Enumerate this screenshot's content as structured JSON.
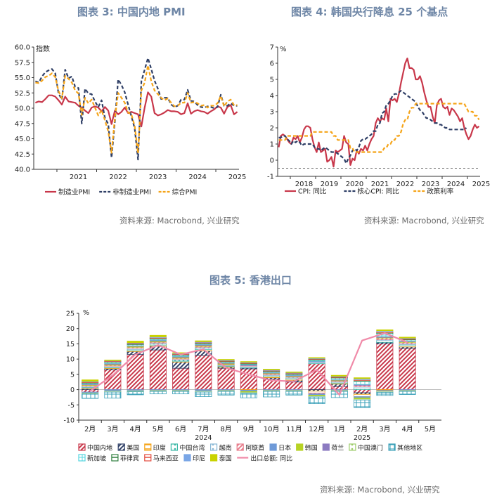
{
  "chart_data": [
    {
      "type": "line",
      "title": "图表 3:  中国内地 PMI",
      "ylabel": "指数",
      "ylim": [
        40,
        60
      ],
      "yticks": [
        "40.0",
        "42.5",
        "45.0",
        "47.5",
        "50.0",
        "52.5",
        "55.0",
        "57.5",
        "60.0"
      ],
      "xticks": [
        "2021",
        "2022",
        "2023",
        "2024",
        "2025"
      ],
      "x_start": "2020-06",
      "series": [
        {
          "name": "制造业PMI",
          "color": "#c8374a",
          "dash": "solid",
          "values": [
            50.9,
            51.1,
            51.0,
            51.5,
            52.1,
            52.1,
            51.9,
            51.3,
            50.6,
            51.9,
            51.1,
            51.0,
            50.9,
            50.4,
            50.1,
            49.6,
            49.2,
            50.1,
            50.3,
            50.1,
            49.5,
            50.2,
            49.6,
            47.4,
            49.6,
            49.0,
            49.4,
            50.1,
            49.2,
            49.4,
            49.2,
            49.0,
            47.0,
            50.1,
            52.6,
            51.9,
            49.2,
            48.8,
            49.0,
            49.3,
            49.7,
            49.5,
            49.5,
            49.4,
            49.0,
            49.2,
            50.8,
            49.1,
            49.5,
            49.7,
            49.5,
            49.4,
            49.1,
            49.5,
            49.8,
            50.3,
            50.1,
            49.1,
            50.2,
            50.5,
            49.0,
            49.4
          ]
        },
        {
          "name": "非制造业PMI",
          "color": "#2f3f66",
          "dash": "dash",
          "values": [
            54.4,
            54.2,
            55.2,
            55.9,
            56.2,
            56.4,
            55.7,
            52.4,
            51.4,
            56.3,
            54.9,
            55.2,
            53.5,
            53.3,
            47.5,
            53.2,
            52.4,
            52.3,
            51.1,
            50.2,
            51.3,
            48.4,
            47.4,
            41.9,
            47.8,
            54.7,
            53.8,
            52.6,
            50.6,
            48.7,
            46.7,
            41.6,
            54.4,
            56.3,
            58.2,
            56.4,
            54.5,
            53.2,
            51.5,
            51.7,
            51.7,
            50.6,
            50.2,
            50.4,
            51.4,
            51.4,
            53.0,
            51.2,
            51.1,
            50.5,
            50.2,
            50.1,
            50.3,
            50.2,
            50.0,
            50.2,
            52.2,
            50.4,
            50.4,
            50.8,
            50.4,
            50.4
          ]
        },
        {
          "name": "综合PMI",
          "color": "#f5a418",
          "dash": "dash",
          "values": [
            54.2,
            54.1,
            54.5,
            55.1,
            55.3,
            55.7,
            55.1,
            52.8,
            51.6,
            55.3,
            54.8,
            54.2,
            52.9,
            52.4,
            48.9,
            51.7,
            50.8,
            51.4,
            50.1,
            48.8,
            49.7,
            48.0,
            46.2,
            42.7,
            48.4,
            52.5,
            51.7,
            50.9,
            49.3,
            49.0,
            47.1,
            42.6,
            52.9,
            54.2,
            57.0,
            54.4,
            52.9,
            52.3,
            51.7,
            51.3,
            51.6,
            50.9,
            50.3,
            50.4,
            50.9,
            50.9,
            52.5,
            50.9,
            51.0,
            50.8,
            50.4,
            50.5,
            50.1,
            50.4,
            50.4,
            50.8,
            52.0,
            50.3,
            51.1,
            51.4,
            50.5,
            50.5
          ]
        }
      ],
      "legend": [
        "制造业PMI",
        "非制造业PMI",
        "综合PMI"
      ],
      "legend_position": "bottom"
    },
    {
      "type": "line",
      "title": "图表 4:  韩国央行降息 25 个基点",
      "ylabel": "%",
      "ylim": [
        -1,
        7
      ],
      "yticks": [
        "-1",
        "0",
        "1",
        "2",
        "3",
        "4",
        "5",
        "6",
        "7"
      ],
      "xticks": [
        "2018",
        "2019",
        "2020",
        "2021",
        "2022",
        "2023",
        "2024",
        "2025"
      ],
      "x_start": "2017-07",
      "reference_line": -0.5,
      "series": [
        {
          "name": "CPI: 同比",
          "color": "#c8374a",
          "dash": "solid",
          "values": [
            0.8,
            1.5,
            1.6,
            1.5,
            1.3,
            1.1,
            1.0,
            1.4,
            1.3,
            1.5,
            1.1,
            1.4,
            1.9,
            2.1,
            2.1,
            2.0,
            1.3,
            0.8,
            0.5,
            1.1,
            0.5,
            0.6,
            0.7,
            -0.1,
            0.0,
            0.2,
            -0.4,
            0.6,
            0.5,
            0.6,
            0.7,
            1.5,
            1.1,
            1.0,
            -0.3,
            0.1,
            0.0,
            0.6,
            0.4,
            0.7,
            0.6,
            0.9,
            0.6,
            1.0,
            1.3,
            1.5,
            2.3,
            2.6,
            2.4,
            2.6,
            2.5,
            3.2,
            2.4,
            3.8,
            3.7,
            3.8,
            3.6,
            4.1,
            4.8,
            5.4,
            6.0,
            6.3,
            5.7,
            5.7,
            5.6,
            5.0,
            5.0,
            5.2,
            4.8,
            4.2,
            3.7,
            3.3,
            3.3,
            2.7,
            2.3,
            3.4,
            3.7,
            3.8,
            3.3,
            3.2,
            3.3,
            2.8,
            3.2,
            3.1,
            2.9,
            2.7,
            2.4,
            2.6,
            2.0,
            1.6,
            1.3,
            1.5,
            1.9,
            2.2,
            2.0,
            2.1
          ]
        },
        {
          "name": "核心CPI: 同比",
          "color": "#2f3f66",
          "dash": "dash",
          "values": [
            1.4,
            1.4,
            1.5,
            1.5,
            1.3,
            1.2,
            1.0,
            1.2,
            1.1,
            1.2,
            1.1,
            0.9,
            1.0,
            1.0,
            1.0,
            1.0,
            1.0,
            0.8,
            0.7,
            0.7,
            0.6,
            0.7,
            0.8,
            0.7,
            0.6,
            0.5,
            0.5,
            0.5,
            0.4,
            0.3,
            0.2,
            0.1,
            -0.2,
            0.1,
            0.3,
            0.6,
            0.7,
            0.6,
            0.8,
            1.2,
            1.3,
            1.3,
            1.4,
            1.5,
            1.6,
            1.8,
            1.8,
            2.2,
            2.3,
            2.9,
            3.0,
            3.4,
            3.5,
            3.7,
            4.0,
            4.1,
            4.1,
            4.2,
            4.3,
            4.2,
            4.1,
            4.0,
            3.9,
            3.8,
            3.7,
            3.6,
            3.3,
            3.1,
            3.0,
            2.8,
            2.6,
            2.6,
            2.5,
            2.4,
            2.3,
            2.3,
            2.2,
            2.2,
            2.1,
            2.0,
            2.0,
            1.9,
            1.9,
            1.9,
            1.9,
            1.9,
            1.9,
            1.9,
            1.9,
            2.0
          ]
        },
        {
          "name": "政策利率",
          "color": "#f5a418",
          "dash": "dash",
          "values": [
            1.25,
            1.25,
            1.25,
            1.25,
            1.5,
            1.5,
            1.5,
            1.5,
            1.5,
            1.5,
            1.5,
            1.5,
            1.5,
            1.5,
            1.5,
            1.5,
            1.75,
            1.75,
            1.75,
            1.75,
            1.75,
            1.75,
            1.75,
            1.75,
            1.75,
            1.75,
            1.5,
            1.5,
            1.25,
            1.25,
            1.25,
            1.25,
            1.25,
            1.25,
            0.75,
            0.75,
            0.5,
            0.5,
            0.5,
            0.5,
            0.5,
            0.5,
            0.5,
            0.5,
            0.5,
            0.5,
            0.5,
            0.5,
            0.5,
            0.5,
            0.75,
            0.75,
            1.0,
            1.0,
            1.25,
            1.25,
            1.5,
            1.5,
            1.75,
            2.25,
            2.5,
            2.5,
            3.0,
            3.25,
            3.25,
            3.5,
            3.5,
            3.5,
            3.5,
            3.5,
            3.5,
            3.5,
            3.5,
            3.5,
            3.5,
            3.5,
            3.5,
            3.5,
            3.5,
            3.5,
            3.5,
            3.5,
            3.5,
            3.5,
            3.5,
            3.5,
            3.5,
            3.5,
            3.5,
            3.25,
            3.0,
            3.0,
            3.0,
            2.75,
            2.75,
            2.5
          ]
        }
      ],
      "legend": [
        "CPI: 同比",
        "核心CPI: 同比",
        "政策利率"
      ],
      "legend_position": "bottom"
    },
    {
      "type": "bar",
      "stacked": true,
      "title": "图表 5:  香港出口",
      "ylabel": "%",
      "ylim": [
        -10,
        25
      ],
      "yticks": [
        "-10",
        "-5",
        "0",
        "5",
        "10",
        "15",
        "20",
        "25"
      ],
      "categories": [
        "2月",
        "3月",
        "4月",
        "5月",
        "6月",
        "7月",
        "8月",
        "9月",
        "10月",
        "11月",
        "12月",
        "1月",
        "2月",
        "3月",
        "4月",
        "5月"
      ],
      "year_labels": [
        {
          "label": "2024",
          "at_category": 5.5
        },
        {
          "label": "2025",
          "at_category": 12.5
        }
      ],
      "series": [
        {
          "name": "中国内地",
          "color": "#c8374a",
          "pattern": "diag",
          "values": [
            -0.8,
            6.5,
            11.5,
            13.0,
            7.0,
            11.2,
            7.0,
            6.8,
            3.5,
            2.5,
            8.5,
            1.0,
            -1.0,
            15.0,
            13.5,
            0
          ]
        },
        {
          "name": "美国",
          "color": "#2f3f66",
          "pattern": "diag",
          "values": [
            0.3,
            0.4,
            1.0,
            1.2,
            2.0,
            1.5,
            0.4,
            0.3,
            0.4,
            0.6,
            -0.5,
            0.8,
            -0.5,
            0.5,
            0.5,
            0
          ]
        },
        {
          "name": "印度",
          "color": "#f5a418",
          "pattern": "hatch",
          "values": [
            0.3,
            0.2,
            0.3,
            0.4,
            0.3,
            0.4,
            0.2,
            -0.2,
            0.3,
            0.4,
            -0.6,
            0.3,
            -0.8,
            -0.3,
            0.4,
            0
          ]
        },
        {
          "name": "中国台湾",
          "color": "#3bb8a6",
          "pattern": "dots",
          "values": [
            0.2,
            0.3,
            0.4,
            0.4,
            0.4,
            0.5,
            0.3,
            0.3,
            0.4,
            0.3,
            0.3,
            0.3,
            0.6,
            0.6,
            0.4,
            0
          ]
        },
        {
          "name": "越南",
          "color": "#8bb9d6",
          "pattern": "dots",
          "values": [
            0.3,
            0.3,
            0.4,
            0.3,
            0.3,
            0.3,
            0.2,
            0.3,
            0.3,
            0.3,
            0.3,
            0.3,
            0.4,
            0.3,
            0.3,
            0
          ]
        },
        {
          "name": "阿联酋",
          "color": "#e87d8c",
          "pattern": "diag",
          "values": [
            0.3,
            0.3,
            0.3,
            0.3,
            0.3,
            0.3,
            0.2,
            0.2,
            0.3,
            0.2,
            -0.3,
            0.2,
            0.4,
            0.5,
            0.4,
            0
          ]
        },
        {
          "name": "日本",
          "color": "#6f9ad8",
          "pattern": "solid",
          "values": [
            -0.3,
            -0.5,
            -0.4,
            -0.3,
            -0.3,
            -0.5,
            -0.3,
            -0.4,
            -0.3,
            -0.3,
            -0.4,
            -0.3,
            -0.4,
            -0.3,
            -0.3,
            0
          ]
        },
        {
          "name": "韩国",
          "color": "#b7d324",
          "pattern": "solid",
          "values": [
            0.2,
            0.3,
            0.3,
            0.3,
            0.3,
            0.3,
            0.3,
            -0.3,
            0.2,
            0.2,
            -0.3,
            0.2,
            -0.4,
            0.2,
            0.2,
            0
          ]
        },
        {
          "name": "荷兰",
          "color": "#8c7bc1",
          "pattern": "solid",
          "values": [
            0.2,
            0.3,
            0.2,
            0.3,
            0.3,
            0.3,
            0.2,
            0.2,
            0.2,
            0.2,
            0.2,
            0.2,
            0.3,
            0.3,
            0.2,
            0
          ]
        },
        {
          "name": "中国澳门",
          "color": "#9ccc6a",
          "pattern": "dots",
          "values": [
            -0.3,
            -0.3,
            -0.3,
            -0.3,
            -0.3,
            -0.3,
            -0.3,
            -0.3,
            -0.3,
            -0.3,
            -0.3,
            -0.3,
            -0.3,
            -0.3,
            -0.3,
            0
          ]
        },
        {
          "name": "其他地区",
          "color": "#3aa0b8",
          "pattern": "grid",
          "values": [
            -1.5,
            -2.0,
            -1.0,
            -0.8,
            -0.8,
            -1.5,
            -1.2,
            -1.5,
            -1.8,
            -1.2,
            -2.2,
            -2.0,
            -2.5,
            -1.0,
            -1.0,
            0
          ]
        },
        {
          "name": "新加坡",
          "color": "#55d6e0",
          "pattern": "grid",
          "values": [
            0.3,
            0.4,
            0.4,
            0.4,
            0.4,
            0.3,
            0.3,
            0.3,
            0.3,
            0.3,
            0.4,
            0.5,
            1.0,
            1.0,
            0.4,
            0
          ]
        },
        {
          "name": "菲律宾",
          "color": "#2f7f3f",
          "pattern": "hatch",
          "values": [
            0.2,
            0.2,
            0.2,
            0.2,
            0.2,
            0.2,
            0.2,
            0.2,
            0.2,
            0.2,
            0.2,
            0.2,
            0.3,
            0.3,
            0.2,
            0
          ]
        },
        {
          "name": "马来西亚",
          "color": "#e34a3c",
          "pattern": "hatch",
          "values": [
            0.2,
            0.2,
            0.2,
            0.3,
            0.2,
            0.2,
            0.2,
            0.2,
            0.2,
            0.2,
            0.2,
            0.2,
            0.3,
            0.3,
            0.2,
            0
          ]
        },
        {
          "name": "印尼",
          "color": "#7aa6e6",
          "pattern": "solid",
          "values": [
            0.2,
            0.1,
            0.2,
            0.2,
            0.2,
            0.2,
            0.2,
            0.2,
            0.2,
            0.2,
            0.2,
            0.2,
            0.3,
            0.3,
            0.2,
            0
          ]
        },
        {
          "name": "泰国",
          "color": "#c9d300",
          "pattern": "solid",
          "values": [
            0.5,
            0.2,
            0.5,
            0.5,
            0.2,
            0.3,
            0.2,
            0.2,
            0.2,
            0.2,
            0.2,
            0.3,
            0.3,
            0.3,
            0.3,
            0
          ]
        }
      ],
      "line_series": {
        "name": "出口总额: 同比",
        "color": "#f08aa8",
        "values": [
          -0.5,
          4.7,
          11.5,
          14.6,
          11.5,
          13.2,
          7.1,
          5.0,
          3.0,
          2.7,
          6.5,
          -1.7,
          16.1,
          18.5,
          15.5,
          null
        ]
      },
      "legend_position": "bottom"
    }
  ],
  "source_text": "资料来源: Macrobond, 兴业研究"
}
